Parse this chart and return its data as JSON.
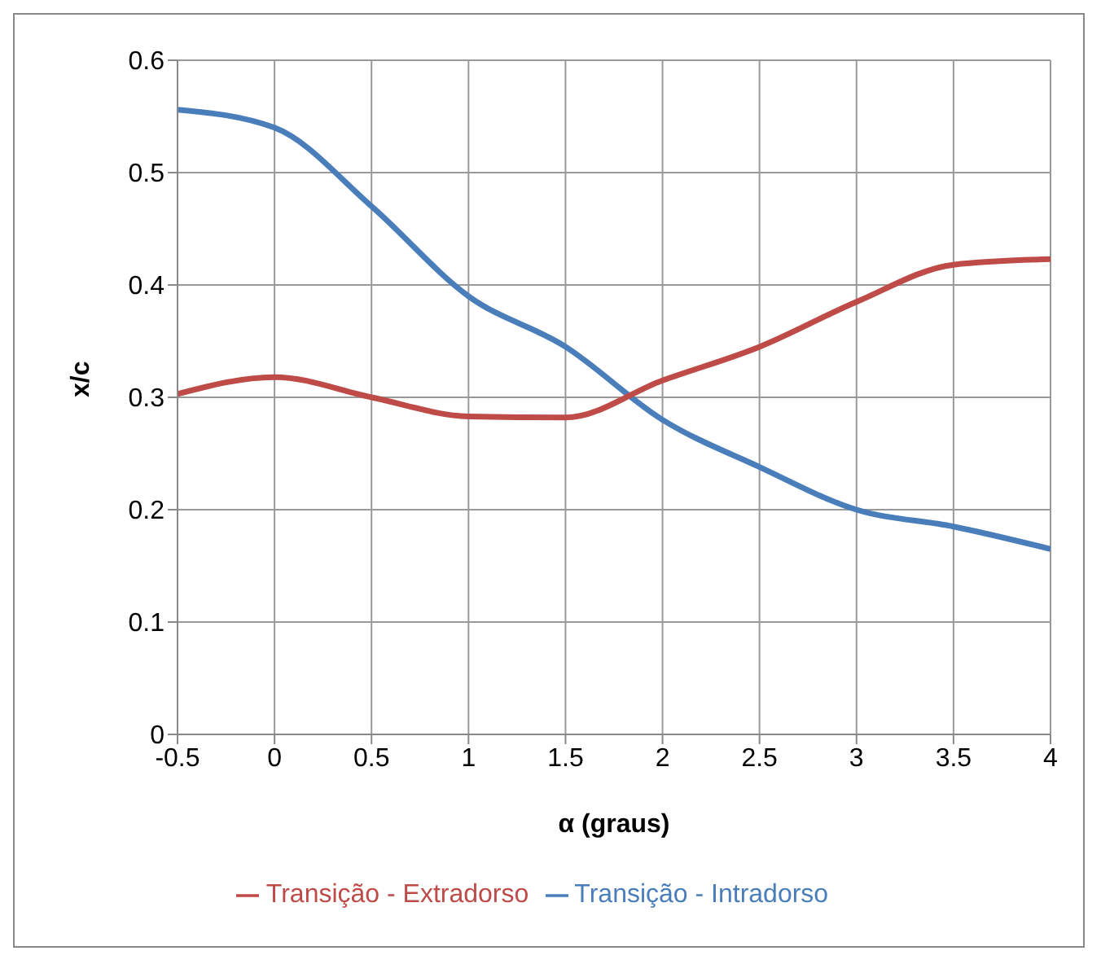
{
  "chart_data": {
    "type": "line",
    "xlabel": "α  (graus)",
    "ylabel": "x/c",
    "x": [
      -0.5,
      0,
      0.5,
      1,
      1.5,
      2,
      2.5,
      3,
      3.5,
      4
    ],
    "series": [
      {
        "name": "Transição - Intradorso",
        "color": "#4a7ebb",
        "values": [
          0.556,
          0.54,
          0.47,
          0.39,
          0.345,
          0.28,
          0.238,
          0.2,
          0.185,
          0.165
        ]
      },
      {
        "name": "Transição - Extradorso",
        "color": "#be4b48",
        "values": [
          0.303,
          0.318,
          0.3,
          0.283,
          0.282,
          0.315,
          0.345,
          0.385,
          0.418,
          0.423
        ]
      }
    ],
    "xlim": [
      -0.5,
      4
    ],
    "xticks": [
      -0.5,
      0,
      0.5,
      1,
      1.5,
      2,
      2.5,
      3,
      3.5,
      4
    ],
    "ylim": [
      0,
      0.6
    ],
    "yticks": [
      0,
      0.1,
      0.2,
      0.3,
      0.4,
      0.5,
      0.6
    ],
    "grid": true,
    "legend": "bottom",
    "marker": "none",
    "line_style": "solid"
  }
}
